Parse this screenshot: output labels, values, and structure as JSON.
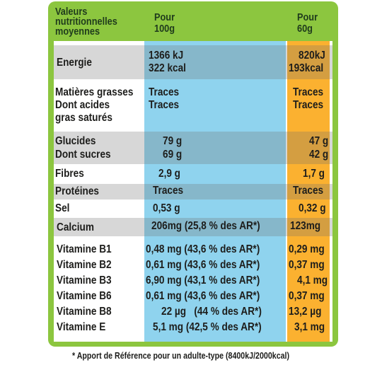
{
  "header": {
    "col_label": [
      "Valeurs",
      "nutritionnelles",
      "moyennes"
    ],
    "per100": [
      "Pour",
      "100g"
    ],
    "perPortion": [
      "Pour",
      "60g"
    ]
  },
  "rows": {
    "energie": {
      "label": "Energie",
      "v100": [
        "1366 kJ",
        "322 kcal"
      ],
      "vp": [
        "820kJ",
        "193kcal"
      ]
    },
    "matieres": {
      "label": "Matières grasses",
      "v100": "Traces",
      "vp": "Traces"
    },
    "acides": {
      "label": [
        "Dont acides",
        "gras saturés"
      ],
      "v100": "Traces",
      "vp": "Traces"
    },
    "glucides": {
      "label": "Glucides",
      "v100": "79 g",
      "vp": "47 g"
    },
    "sucres": {
      "label": "Dont sucres",
      "v100": "69 g",
      "vp": "42 g"
    },
    "fibres": {
      "label": "Fibres",
      "v100": "2,9 g",
      "vp": "1,7 g"
    },
    "proteines": {
      "label": "Protéines",
      "v100": "Traces",
      "vp": "Traces"
    },
    "sel": {
      "label": "Sel",
      "v100": "0,53 g",
      "vp": "0,32 g"
    },
    "calcium": {
      "label": "Calcium",
      "v100": "206mg (25,8 % des AR*)",
      "vp": "123mg"
    },
    "b1": {
      "label": "Vitamine B1",
      "v100": "0,48 mg (43,6 % des AR*)",
      "vp": "0,29 mg"
    },
    "b2": {
      "label": "Vitamine B2",
      "v100": "0,61 mg (43,6 % des AR*)",
      "vp": "0,37 mg"
    },
    "b3": {
      "label": "Vitamine B3",
      "v100": "6,90 mg (43,1 % des AR*)",
      "vp": "4,1 mg"
    },
    "b6": {
      "label": "Vitamine B6",
      "v100": "0,61 mg (43,6 % des AR*)",
      "vp": "0,37 mg"
    },
    "b8": {
      "label": "Vitamine B8",
      "v100": "22 µg   (44 % des AR*)",
      "vp": "13,2 µg"
    },
    "e": {
      "label": "Vitamine E",
      "v100": "5,1 mg (42,5 % des AR*)",
      "vp": "3,1 mg"
    }
  },
  "footnote": "* Apport de Référence pour un adulte-type (8400kJ/2000kcal)"
}
